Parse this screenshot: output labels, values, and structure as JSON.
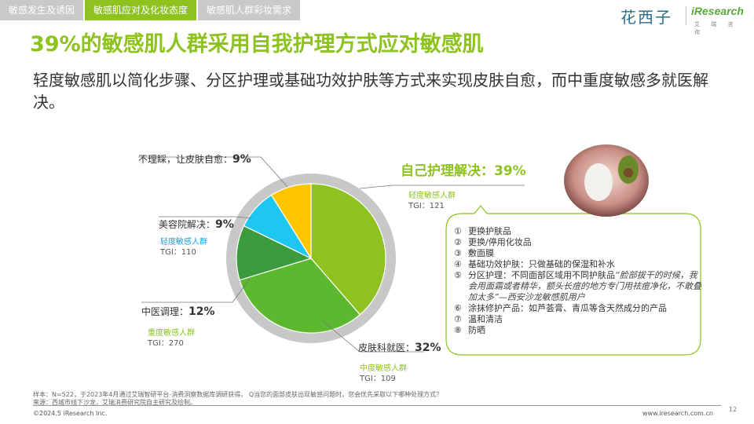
{
  "tabs": [
    {
      "label": "敏感发生及诱因",
      "active": false
    },
    {
      "label": "敏感肌应对及化妆态度",
      "active": true
    },
    {
      "label": "敏感肌人群彩妆需求",
      "active": false
    }
  ],
  "logo": {
    "brand_cn": "花西子",
    "brand_en": "iResearch",
    "brand_en_sub": "艾 瑞 咨 询"
  },
  "title": "39%的敏感肌人群采用自我护理方式应对敏感肌",
  "subtitle": "轻度敏感肌以简化步骤、分区护理或基础功效护肤等方式来实现皮肤自愈，而中重度敏感多就医解决。",
  "chart_data": {
    "type": "pie",
    "slices": [
      {
        "label": "自己护理解决",
        "value": 39,
        "color": "#8dc21f",
        "segment": "轻度敏感人群",
        "tgi": "TGI：121"
      },
      {
        "label": "皮肤科就医",
        "value": 32,
        "color": "#5cb82e",
        "segment": "中度敏感人群",
        "tgi": "TGI：109"
      },
      {
        "label": "中医调理",
        "value": 12,
        "color": "#3c9b3c",
        "segment": "重度敏感人群",
        "tgi": "TGI：270"
      },
      {
        "label": "美容院解决",
        "value": 9,
        "color": "#1ec7ef",
        "segment": "轻度敏感人群",
        "tgi": "TGI：110"
      },
      {
        "label": "不理睬，让皮肤自愈",
        "value": 9,
        "color": "#ffc600",
        "segment": "",
        "tgi": ""
      }
    ],
    "pct_labels": [
      "39%",
      "32%",
      "12%",
      "9%",
      "9%"
    ],
    "name_labels": [
      "自己护理解决：",
      "皮肤科就医：",
      "中医调理：",
      "美容院解决：",
      "不理睬，让皮肤自愈："
    ],
    "ring_color": "#c8c8c8"
  },
  "self_care_list": [
    {
      "num": "①",
      "text": "更换护肤品"
    },
    {
      "num": "②",
      "text": "更换/停用化妆品"
    },
    {
      "num": "③",
      "text": "敷面膜"
    },
    {
      "num": "④",
      "text": "基础功效护肤：只做基础的保湿和补水"
    },
    {
      "num": "⑤",
      "text": "分区护理：不同面部区域用不同护肤品",
      "quote": "“脸部拔干的时候，我会用面霜或者精华，额头长痘的地方专门用祛痘净化，不敢叠加太多”",
      "source": "—西安沙龙敏感肌用户"
    },
    {
      "num": "⑥",
      "text": "涂抹修护产品：如芦荟膏、青瓜等含天然成分的产品"
    },
    {
      "num": "⑦",
      "text": "温和清洁"
    },
    {
      "num": "⑧",
      "text": "防晒"
    }
  ],
  "footer": {
    "sample": "样本：N=522，于2023年4月通过艾瑞智研平台-消费洞察数据库调研获得。 Q当您的面部皮肤出现敏感问题时，您会优先采取以下哪种处理方式？",
    "source": "来源：西城市线下沙龙，艾瑞消费研究院自主研究及绘制。",
    "copyright": "©2024.5 iResearch Inc.",
    "url": "www.iresearch.com.cn",
    "page": "12"
  }
}
